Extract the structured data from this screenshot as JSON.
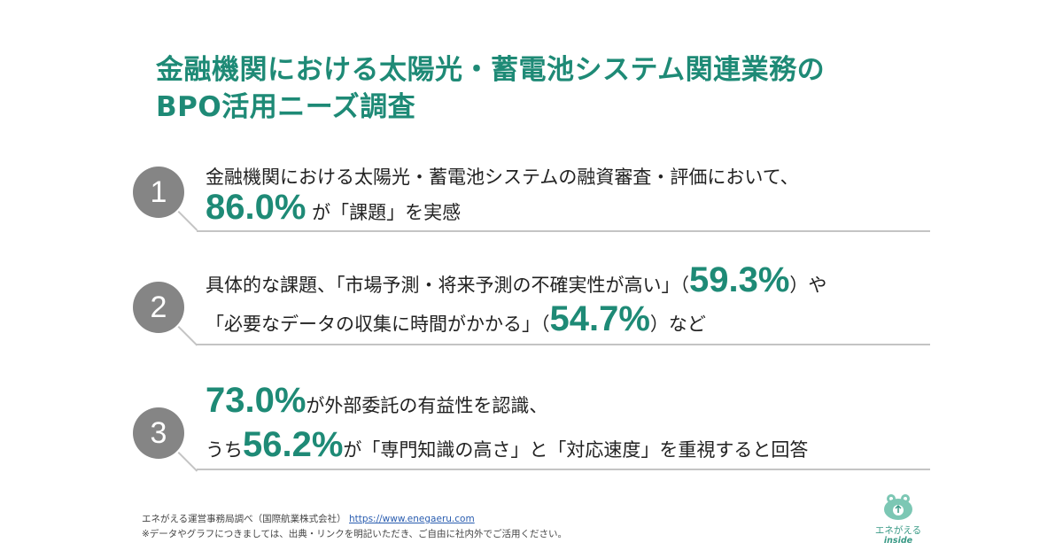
{
  "title": {
    "line1": "金融機関における太陽光・蓄電池システム関連業務の",
    "line2": "BPO活用ニーズ調査"
  },
  "items": [
    {
      "number": "1",
      "line1": "金融機関における太陽光・蓄電池システムの融資審査・評価において、",
      "line2_value": "86.0%",
      "line2_text": " が「課題」を実感"
    },
    {
      "number": "2",
      "line1_a": "具体的な課題、「市場予測・将来予測の不確実性が高い」（",
      "line1_value": "59.3%",
      "line1_b": "）や",
      "line2_a": "「必要なデータの収集に時間がかかる」（",
      "line2_value": "54.7%",
      "line2_b": "）など"
    },
    {
      "number": "3",
      "line1_value": "73.0%",
      "line1_text": "が外部委託の有益性を認識、",
      "line2_a": "うち",
      "line2_value": "56.2%",
      "line2_b": "が「専門知識の高さ」と「対応速度」を重視すると回答"
    }
  ],
  "footer": {
    "source": "エネがえる運営事務局調べ（国際航業株式会社）",
    "url": "https://www.enegaeru.com",
    "note": "※データやグラフにつきましては、出典・リンクを明記いただき、ご自由に社内外でご活用ください。"
  },
  "logo": {
    "name": "エネがえる",
    "sub": "inside"
  },
  "colors": {
    "accent": "#1e8a76",
    "circle": "#858585",
    "rule": "#c4c4c4"
  }
}
